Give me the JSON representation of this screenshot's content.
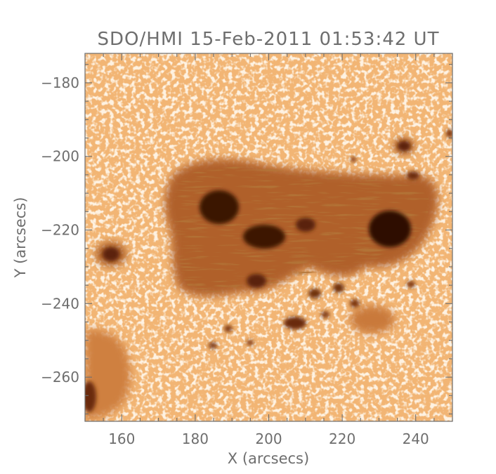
{
  "figure": {
    "title": "SDO/HMI 15-Feb-2011 01:53:42 UT",
    "xlabel": "X (arcsecs)",
    "ylabel": "Y (arcsecs)",
    "xlim": [
      150,
      250
    ],
    "ylim": [
      -272,
      -172
    ],
    "x_ticks": [
      160,
      180,
      200,
      220,
      240
    ],
    "y_ticks": [
      -180,
      -200,
      -220,
      -240,
      -260
    ],
    "x_minor_step": 5,
    "y_minor_step": 5,
    "colors": {
      "frame": "#6e6e6e",
      "photosphere": "#f2b574",
      "granule_bright": "#fde4c2",
      "penumbra": "#a2531c",
      "umbra": "#2e0e00"
    },
    "image_content": "sunspot-group-continuum-intensity"
  }
}
